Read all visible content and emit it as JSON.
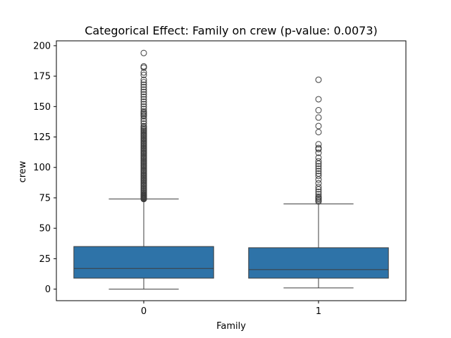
{
  "chart_data": {
    "type": "box",
    "title": "Categorical Effect: Family on crew (p-value: 0.0073)",
    "xlabel": "Family",
    "ylabel": "crew",
    "categories": [
      "0",
      "1"
    ],
    "ylim": [
      -9.5,
      204
    ],
    "yticks": [
      0,
      25,
      50,
      75,
      100,
      125,
      150,
      175,
      200
    ],
    "grid": false,
    "legend": "none",
    "box_color": "#2e73a8",
    "edge_color": "#3d3d3d",
    "boxes": [
      {
        "category": "0",
        "whisker_low": 0,
        "q1": 9,
        "median": 17,
        "q3": 35,
        "whisker_high": 74,
        "outliers": [
          74,
          74.5,
          75,
          75.5,
          76,
          76.5,
          77,
          77.5,
          78,
          79,
          80,
          81,
          82,
          83,
          84,
          85,
          86,
          87,
          88,
          89,
          90,
          91,
          92,
          93,
          94,
          95,
          96,
          97,
          98,
          99,
          100,
          101,
          102,
          103,
          104,
          105,
          106,
          107,
          108,
          109,
          110,
          111,
          112,
          113,
          114,
          115,
          116,
          117,
          118,
          119,
          120,
          121,
          122,
          123,
          124,
          125,
          126,
          127,
          128,
          129,
          130,
          131,
          132,
          133,
          134,
          136,
          138,
          140,
          142,
          143,
          144,
          145,
          146,
          148,
          150,
          152,
          154,
          156,
          158,
          160,
          162,
          164,
          166,
          168,
          170,
          172,
          176,
          178,
          182,
          183,
          194
        ]
      },
      {
        "category": "1",
        "whisker_low": 1,
        "q1": 9,
        "median": 16,
        "q3": 34,
        "whisker_high": 70,
        "outliers": [
          72,
          73,
          74,
          75,
          76,
          78,
          80,
          82,
          84,
          87,
          90,
          93,
          95,
          97,
          99,
          101,
          103,
          105,
          108,
          112,
          115,
          116,
          119,
          129,
          134,
          141,
          147,
          156,
          172
        ]
      }
    ]
  }
}
